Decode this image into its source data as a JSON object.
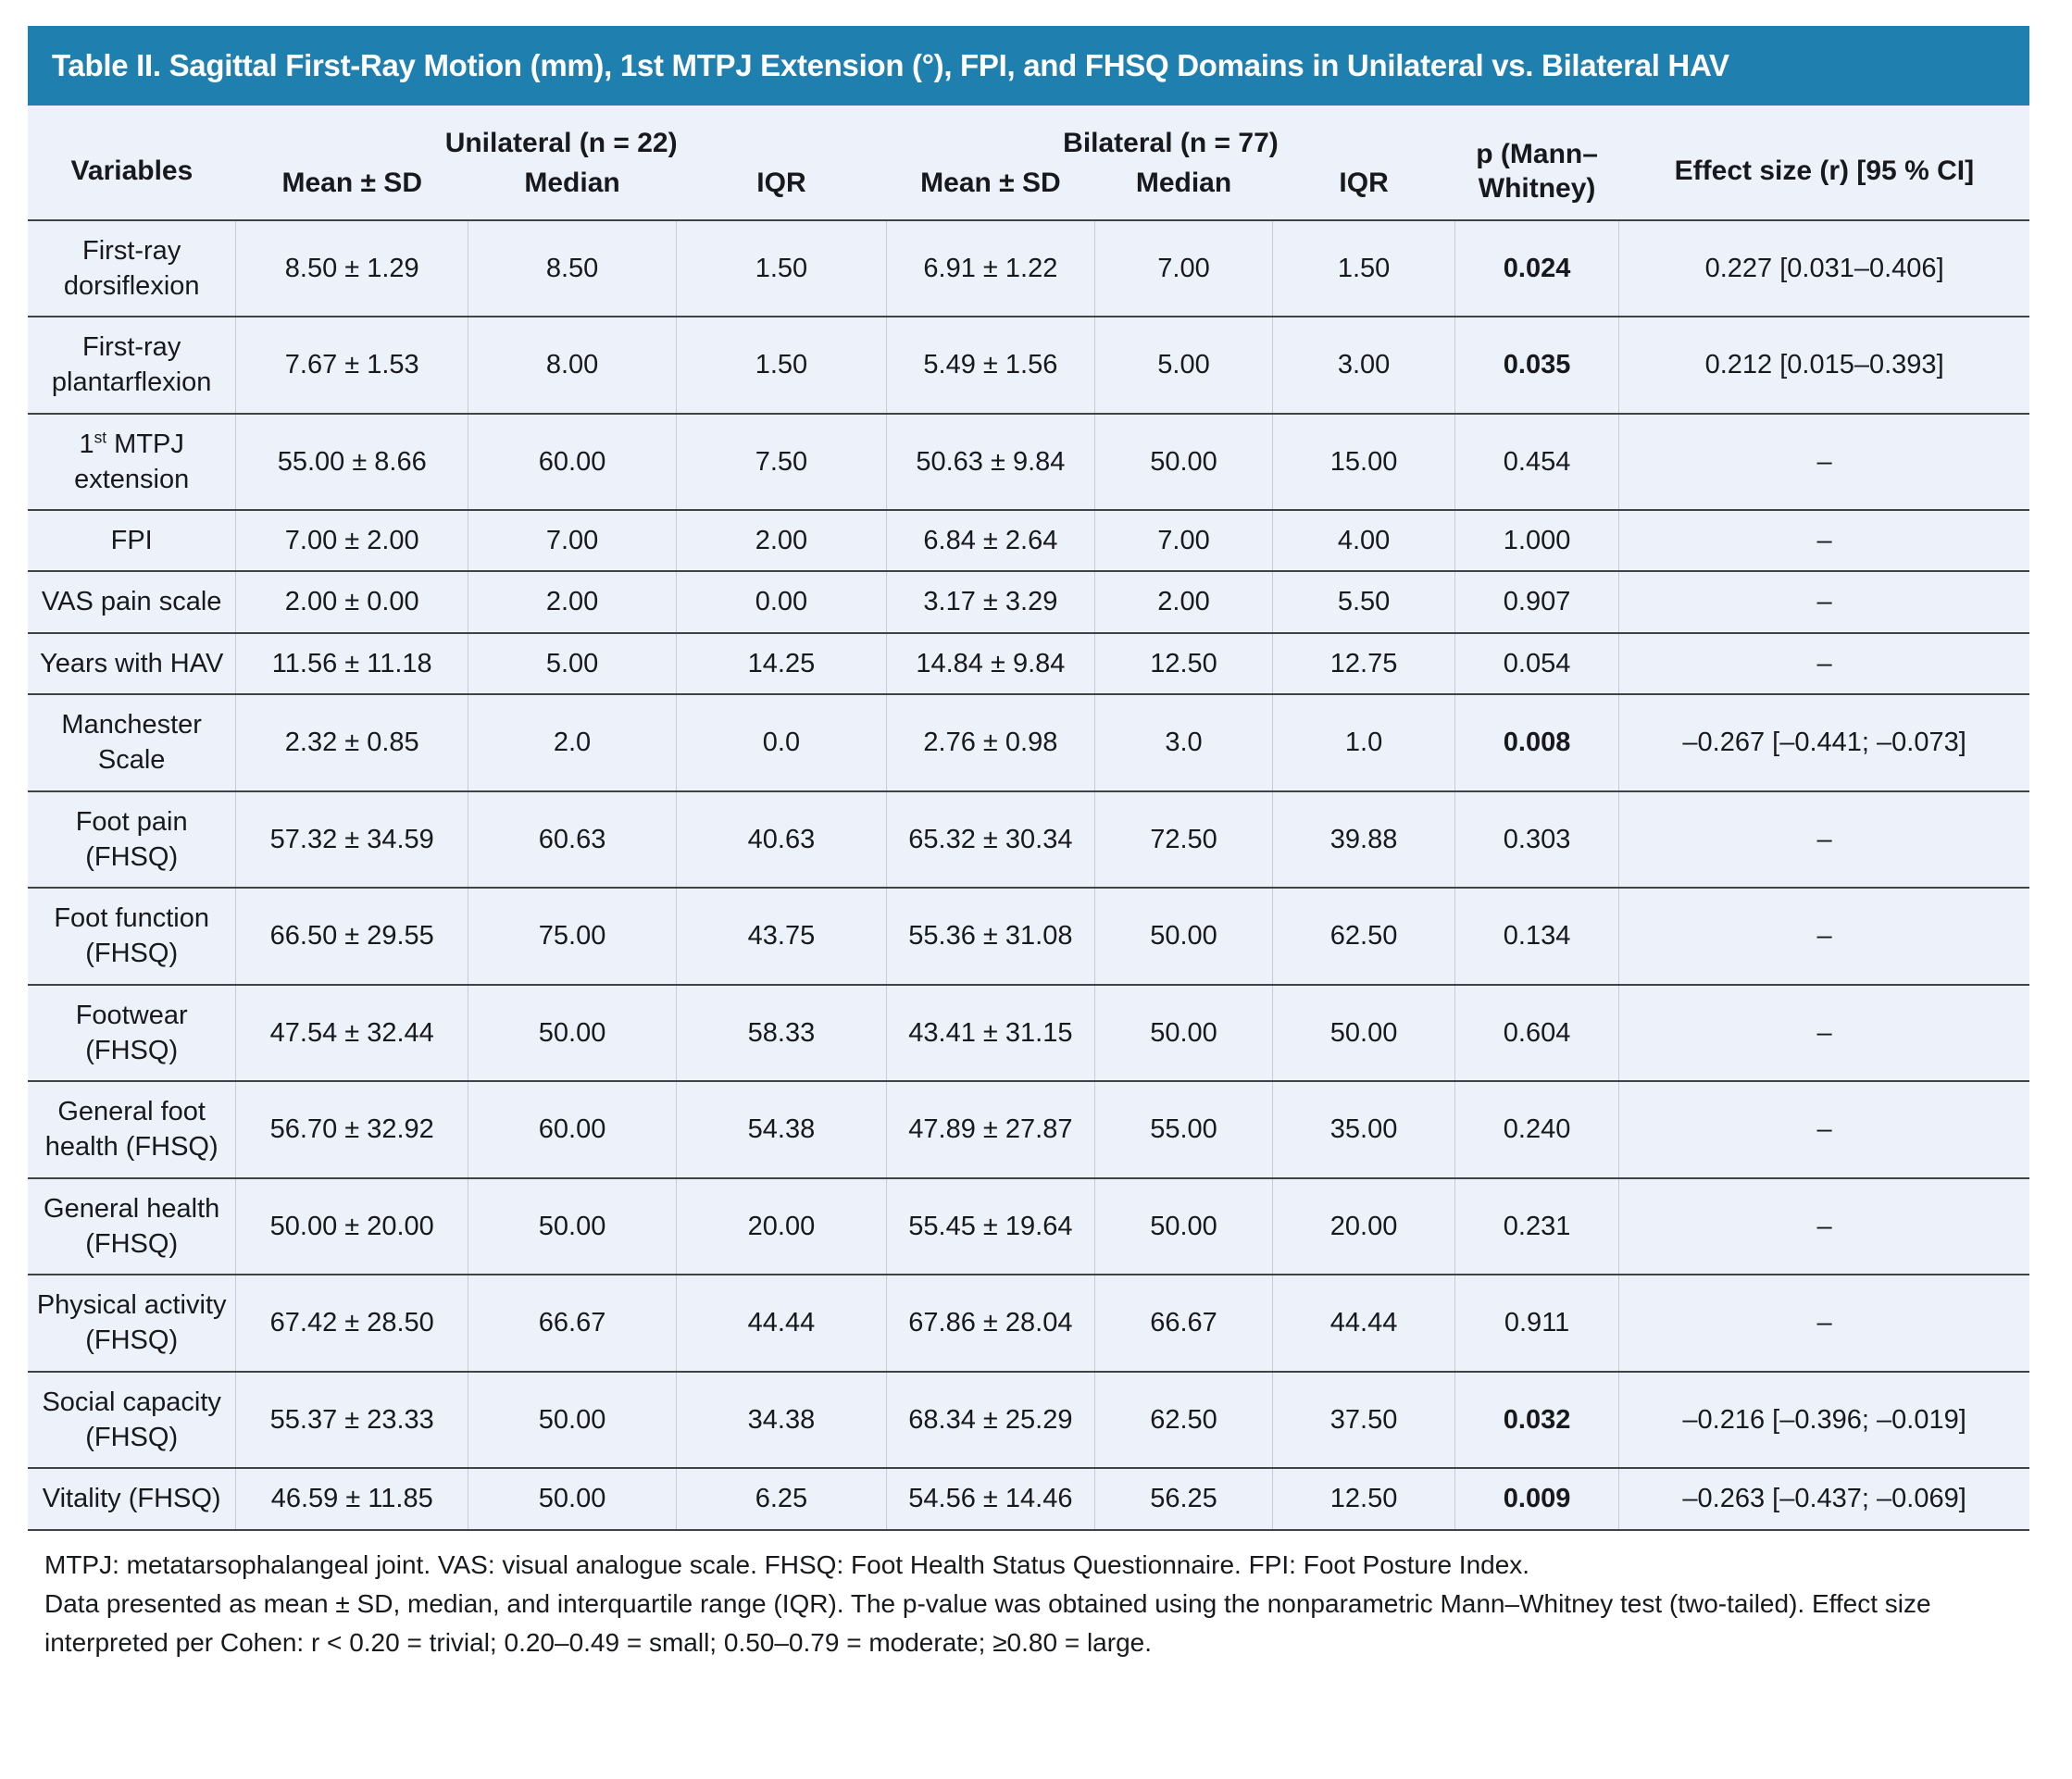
{
  "table": {
    "title": "Table II. Sagittal First-Ray Motion (mm), 1st MTPJ Extension (°), FPI, and FHSQ Domains in Unilateral vs. Bilateral HAV",
    "header": {
      "variables_label": "Variables",
      "unilateral_group_label": "Unilateral (n = 22)",
      "bilateral_group_label": "Bilateral (n = 77)",
      "mean_sd_label": "Mean ± SD",
      "median_label": "Median",
      "iqr_label": "IQR",
      "p_label": "p (Mann–Whitney)",
      "effect_size_label": "Effect size (r) [95 % CI]"
    },
    "rows": [
      {
        "variable": "First-ray dorsiflexion",
        "unilateral": {
          "mean_sd": "8.50 ± 1.29",
          "median": "8.50",
          "iqr": "1.50"
        },
        "bilateral": {
          "mean_sd": "6.91 ± 1.22",
          "median": "7.00",
          "iqr": "1.50"
        },
        "p_value": "0.024",
        "significant": true,
        "effect_size": "0.227 [0.031–0.406]"
      },
      {
        "variable": "First-ray plantarflexion",
        "unilateral": {
          "mean_sd": "7.67 ± 1.53",
          "median": "8.00",
          "iqr": "1.50"
        },
        "bilateral": {
          "mean_sd": "5.49 ± 1.56",
          "median": "5.00",
          "iqr": "3.00"
        },
        "p_value": "0.035",
        "significant": true,
        "effect_size": "0.212 [0.015–0.393]"
      },
      {
        "variable": "1st MTPJ extension",
        "variable_parts": {
          "pre": "1",
          "sup": "st",
          "post": " MTPJ extension"
        },
        "unilateral": {
          "mean_sd": "55.00 ± 8.66",
          "median": "60.00",
          "iqr": "7.50"
        },
        "bilateral": {
          "mean_sd": "50.63 ± 9.84",
          "median": "50.00",
          "iqr": "15.00"
        },
        "p_value": "0.454",
        "significant": false,
        "effect_size": "–"
      },
      {
        "variable": "FPI",
        "unilateral": {
          "mean_sd": "7.00 ± 2.00",
          "median": "7.00",
          "iqr": "2.00"
        },
        "bilateral": {
          "mean_sd": "6.84 ± 2.64",
          "median": "7.00",
          "iqr": "4.00"
        },
        "p_value": "1.000",
        "significant": false,
        "effect_size": "–"
      },
      {
        "variable": "VAS pain scale",
        "unilateral": {
          "mean_sd": "2.00 ± 0.00",
          "median": "2.00",
          "iqr": "0.00"
        },
        "bilateral": {
          "mean_sd": "3.17 ± 3.29",
          "median": "2.00",
          "iqr": "5.50"
        },
        "p_value": "0.907",
        "significant": false,
        "effect_size": "–"
      },
      {
        "variable": "Years with HAV",
        "unilateral": {
          "mean_sd": "11.56 ± 11.18",
          "median": "5.00",
          "iqr": "14.25"
        },
        "bilateral": {
          "mean_sd": "14.84 ± 9.84",
          "median": "12.50",
          "iqr": "12.75"
        },
        "p_value": "0.054",
        "significant": false,
        "effect_size": "–"
      },
      {
        "variable": "Manchester Scale",
        "unilateral": {
          "mean_sd": "2.32 ± 0.85",
          "median": "2.0",
          "iqr": "0.0"
        },
        "bilateral": {
          "mean_sd": "2.76 ± 0.98",
          "median": "3.0",
          "iqr": "1.0"
        },
        "p_value": "0.008",
        "significant": true,
        "effect_size": "–0.267 [–0.441; –0.073]"
      },
      {
        "variable": "Foot pain (FHSQ)",
        "unilateral": {
          "mean_sd": "57.32 ± 34.59",
          "median": "60.63",
          "iqr": "40.63"
        },
        "bilateral": {
          "mean_sd": "65.32 ± 30.34",
          "median": "72.50",
          "iqr": "39.88"
        },
        "p_value": "0.303",
        "significant": false,
        "effect_size": "–"
      },
      {
        "variable": "Foot function (FHSQ)",
        "unilateral": {
          "mean_sd": "66.50 ± 29.55",
          "median": "75.00",
          "iqr": "43.75"
        },
        "bilateral": {
          "mean_sd": "55.36 ± 31.08",
          "median": "50.00",
          "iqr": "62.50"
        },
        "p_value": "0.134",
        "significant": false,
        "effect_size": "–"
      },
      {
        "variable": "Footwear (FHSQ)",
        "unilateral": {
          "mean_sd": "47.54 ± 32.44",
          "median": "50.00",
          "iqr": "58.33"
        },
        "bilateral": {
          "mean_sd": "43.41 ± 31.15",
          "median": "50.00",
          "iqr": "50.00"
        },
        "p_value": "0.604",
        "significant": false,
        "effect_size": "–"
      },
      {
        "variable": "General foot health (FHSQ)",
        "unilateral": {
          "mean_sd": "56.70 ± 32.92",
          "median": "60.00",
          "iqr": "54.38"
        },
        "bilateral": {
          "mean_sd": "47.89 ± 27.87",
          "median": "55.00",
          "iqr": "35.00"
        },
        "p_value": "0.240",
        "significant": false,
        "effect_size": "–"
      },
      {
        "variable": "General health (FHSQ)",
        "unilateral": {
          "mean_sd": "50.00 ± 20.00",
          "median": "50.00",
          "iqr": "20.00"
        },
        "bilateral": {
          "mean_sd": "55.45 ± 19.64",
          "median": "50.00",
          "iqr": "20.00"
        },
        "p_value": "0.231",
        "significant": false,
        "effect_size": "–"
      },
      {
        "variable": "Physical activity (FHSQ)",
        "unilateral": {
          "mean_sd": "67.42 ± 28.50",
          "median": "66.67",
          "iqr": "44.44"
        },
        "bilateral": {
          "mean_sd": "67.86 ± 28.04",
          "median": "66.67",
          "iqr": "44.44"
        },
        "p_value": "0.911",
        "significant": false,
        "effect_size": "–"
      },
      {
        "variable": "Social capacity (FHSQ)",
        "unilateral": {
          "mean_sd": "55.37 ± 23.33",
          "median": "50.00",
          "iqr": "34.38"
        },
        "bilateral": {
          "mean_sd": "68.34 ± 25.29",
          "median": "62.50",
          "iqr": "37.50"
        },
        "p_value": "0.032",
        "significant": true,
        "effect_size": "–0.216 [–0.396; –0.019]"
      },
      {
        "variable": "Vitality (FHSQ)",
        "unilateral": {
          "mean_sd": "46.59 ± 11.85",
          "median": "50.00",
          "iqr": "6.25"
        },
        "bilateral": {
          "mean_sd": "54.56 ± 14.46",
          "median": "56.25",
          "iqr": "12.50"
        },
        "p_value": "0.009",
        "significant": true,
        "effect_size": "–0.263 [–0.437; –0.069]"
      }
    ],
    "footnotes": [
      "MTPJ: metatarsophalangeal joint. VAS: visual analogue scale. FHSQ: Foot Health Status Questionnaire. FPI: Foot Posture Index.",
      "Data presented as mean ± SD, median, and interquartile range (IQR). The p-value was obtained using the nonparametric Mann–Whitney test (two-tailed). Effect size interpreted per Cohen: r < 0.20 = trivial; 0.20–0.49 = small; 0.50–0.79 = moderate; ≥0.80 = large."
    ]
  },
  "colors": {
    "title_bar": "#1f80b0",
    "table_background": "#edf1f9",
    "row_line": "#404448",
    "column_line": "#c6cdda",
    "text": "#17191c",
    "title_text": "#ffffff"
  }
}
